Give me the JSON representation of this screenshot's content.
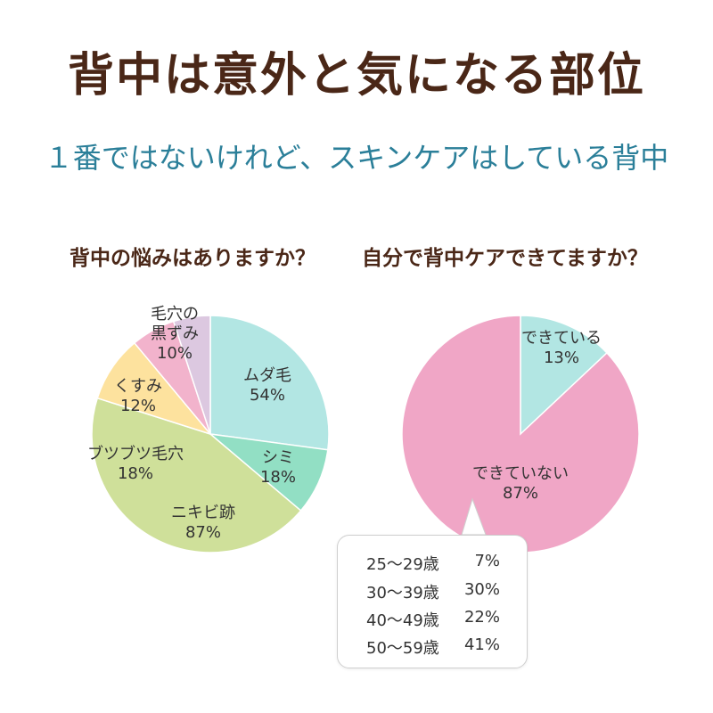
{
  "header": {
    "title": "背中は意外と気になる部位",
    "subtitle": "１番ではないけれど、スキンケアはしている背中"
  },
  "chart_data": [
    {
      "type": "pie",
      "title": "背中の悩みはありますか？",
      "slices": [
        {
          "label": "ムダ毛",
          "value_label": "54%",
          "value": 54,
          "color": "#b2e6e3"
        },
        {
          "label": "シミ",
          "value_label": "18%",
          "value": 18,
          "color": "#92dfc4"
        },
        {
          "label": "ニキビ跡",
          "value_label": "87%",
          "value": 87,
          "color": "#cfe09a"
        },
        {
          "label": "ブツブツ毛穴",
          "value_label": "18%",
          "value": 18,
          "color": "#fde29e"
        },
        {
          "label": "くすみ",
          "value_label": "12%",
          "value": 12,
          "color": "#f2b3cc"
        },
        {
          "label": "毛穴の黒ずみ",
          "label_lines": [
            "毛穴の",
            "黒ずみ"
          ],
          "value_label": "10%",
          "value": 10,
          "color": "#dcc8e0"
        }
      ]
    },
    {
      "type": "pie",
      "title": "自分で背中ケアできてますか？",
      "slices": [
        {
          "label": "できている",
          "value_label": "13%",
          "value": 13,
          "color": "#b2e6e3"
        },
        {
          "label": "できていない",
          "value_label": "87%",
          "value": 87,
          "color": "#f0a6c6"
        }
      ],
      "breakdown": {
        "of": "できていない",
        "rows": [
          {
            "age": "25～29歳",
            "value_label": "7%",
            "value": 7
          },
          {
            "age": "30～39歳",
            "value_label": "30%",
            "value": 30
          },
          {
            "age": "40～49歳",
            "value_label": "22%",
            "value": 22
          },
          {
            "age": "50～59歳",
            "value_label": "41%",
            "value": 41
          }
        ]
      }
    }
  ]
}
